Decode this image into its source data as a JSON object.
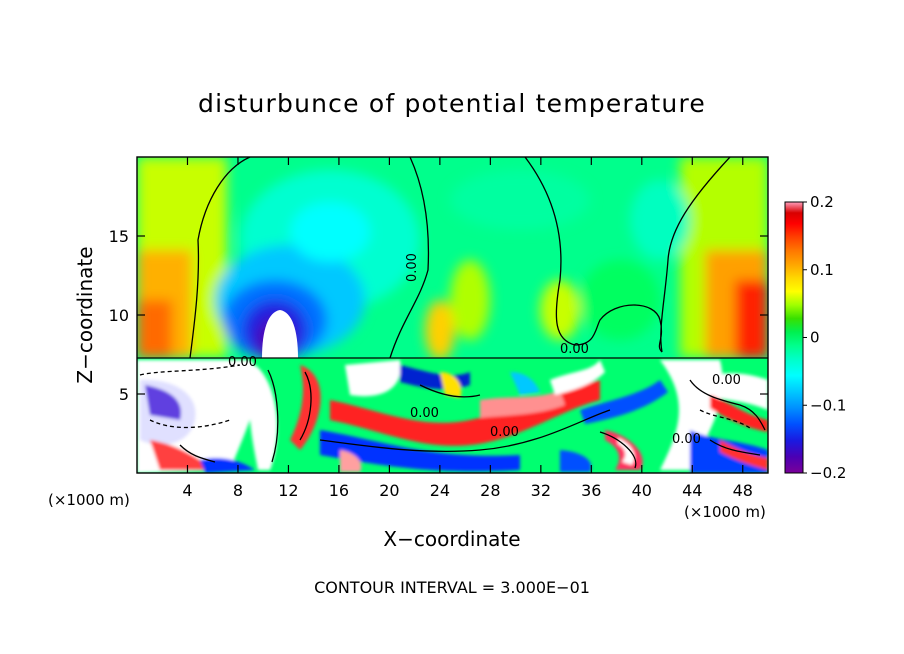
{
  "chart_data": {
    "type": "heatmap",
    "title": "disturbunce of potential temperature",
    "xlabel": "X−coordinate",
    "ylabel": "Z−coordinate",
    "x_unit": "(×1000 m)",
    "y_unit": "(×1000 m)",
    "xlim": [
      0,
      50
    ],
    "ylim": [
      0,
      20
    ],
    "x_ticks": [
      "4",
      "8",
      "12",
      "16",
      "20",
      "24",
      "28",
      "32",
      "36",
      "40",
      "44",
      "48"
    ],
    "y_ticks": [
      "5",
      "10",
      "15"
    ],
    "contour_label": "0.00",
    "footer": "CONTOUR INTERVAL = 3.000E−01",
    "colorbar": {
      "min": -0.2,
      "max": 0.2,
      "tick_labels": [
        "0.2",
        "0.1",
        "0",
        "−0.1",
        "−0.2"
      ],
      "tick_values": [
        0.2,
        0.1,
        0,
        -0.1,
        -0.2
      ],
      "colors": [
        "#7a0099",
        "#4b00b4",
        "#1a1ae0",
        "#0050ff",
        "#0090ff",
        "#00c8ff",
        "#00ffff",
        "#00ffc8",
        "#00ff8c",
        "#00ff50",
        "#00e000",
        "#64ff00",
        "#b4ff00",
        "#ffff00",
        "#ffd700",
        "#ffa500",
        "#ff7800",
        "#ff4000",
        "#ff0000",
        "#d80000",
        "#ff9ebc"
      ]
    }
  }
}
